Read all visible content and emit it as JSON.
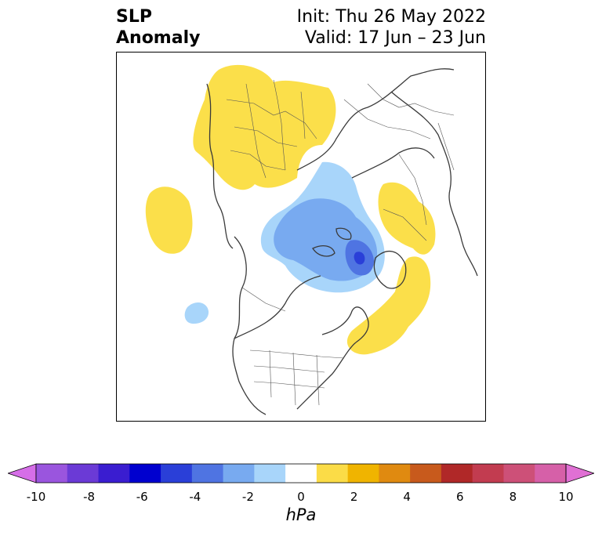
{
  "title": {
    "line1": "SLP",
    "line2": "Anomaly",
    "init": "Init: Thu 26 May 2022",
    "valid": "Valid: 17 Jun – 23 Jun"
  },
  "colorbar": {
    "unit": "hPa",
    "min": -10,
    "max": 10,
    "ticks": [
      "-10",
      "-8",
      "-6",
      "-4",
      "-2",
      "0",
      "2",
      "4",
      "6",
      "8",
      "10"
    ],
    "colors": [
      "#d66ee8",
      "#9a55de",
      "#6b3ad6",
      "#3a1dd0",
      "#0000cf",
      "#2a3fd8",
      "#4f74e2",
      "#78aaf0",
      "#a8d5fa",
      "#ffffff",
      "#fbdc47",
      "#f0b400",
      "#e08a10",
      "#c85a1c",
      "#b02828",
      "#c23c50",
      "#cd5078",
      "#d660a8",
      "#e070d4"
    ]
  },
  "map": {
    "projection": "polar stereographic (Northern Hemisphere)",
    "anomalies": [
      {
        "region": "Europe / Scandinavia",
        "sign": "positive",
        "level": "+1 to +2 hPa"
      },
      {
        "region": "Central Pacific",
        "sign": "positive",
        "level": "+1 to +2 hPa"
      },
      {
        "region": "Alaska / Bering region",
        "sign": "positive",
        "level": "+1 to +2 hPa"
      },
      {
        "region": "Eastern Canada / Western Atlantic",
        "sign": "positive",
        "level": "+1 to +2 hPa"
      },
      {
        "region": "Arctic / Canadian Archipelago",
        "sign": "negative",
        "level": "-1 to -5 hPa"
      },
      {
        "region": "Eastern Pacific",
        "sign": "negative",
        "level": "-1 to -2 hPa"
      }
    ]
  }
}
